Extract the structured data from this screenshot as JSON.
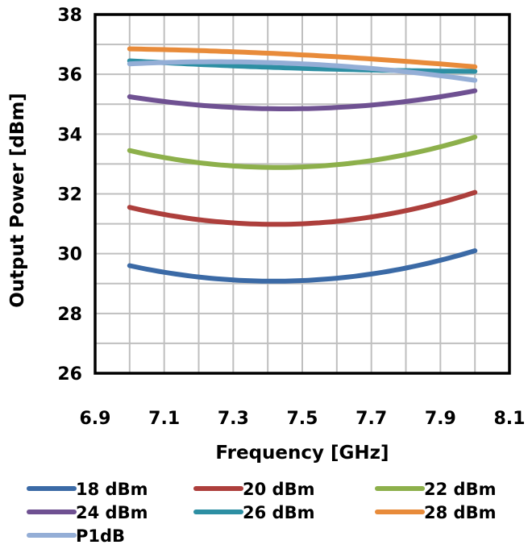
{
  "chart_data": {
    "type": "line",
    "title": "",
    "xlabel": "Frequency [GHz]",
    "ylabel": "Output Power [dBm]",
    "xlim": [
      6.9,
      8.1
    ],
    "ylim": [
      26,
      38
    ],
    "x_ticks": [
      6.9,
      7.1,
      7.3,
      7.5,
      7.7,
      7.9,
      8.1
    ],
    "x_tick_labels": [
      "6.9",
      "7.1",
      "7.3",
      "7.5",
      "7.7",
      "7.9",
      "8.1"
    ],
    "y_ticks": [
      26,
      28,
      30,
      32,
      34,
      36,
      38
    ],
    "y_tick_labels": [
      "26",
      "28",
      "30",
      "32",
      "34",
      "36",
      "38"
    ],
    "grid": true,
    "legend_position": "bottom",
    "x": [
      7.0,
      7.5,
      8.0
    ],
    "series": [
      {
        "name": "18 dBm",
        "color": "#3b6aa6",
        "values": [
          29.6,
          29.1,
          30.1
        ]
      },
      {
        "name": "20 dBm",
        "color": "#ad3f3c",
        "values": [
          31.55,
          31.0,
          32.05
        ]
      },
      {
        "name": "22 dBm",
        "color": "#8db04b",
        "values": [
          33.45,
          32.9,
          33.9
        ]
      },
      {
        "name": "24 dBm",
        "color": "#6f5192",
        "values": [
          35.25,
          34.85,
          35.45
        ]
      },
      {
        "name": "26 dBm",
        "color": "#2d8fa3",
        "values": [
          36.45,
          36.2,
          36.1
        ]
      },
      {
        "name": "28 dBm",
        "color": "#e88b3a",
        "values": [
          36.85,
          36.65,
          36.25
        ]
      },
      {
        "name": "P1dB",
        "color": "#94aed6",
        "values": [
          36.35,
          36.35,
          35.8
        ]
      }
    ]
  }
}
